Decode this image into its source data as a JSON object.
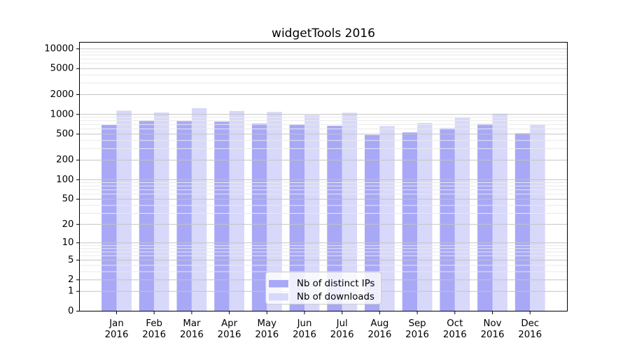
{
  "chart_data": {
    "type": "bar",
    "title": "widgetTools 2016",
    "categories": [
      "Jan",
      "Feb",
      "Mar",
      "Apr",
      "May",
      "Jun",
      "Jul",
      "Aug",
      "Sep",
      "Oct",
      "Nov",
      "Dec"
    ],
    "year": "2016",
    "series": [
      {
        "name": "Nb of distinct IPs",
        "color": "#a8a8f7",
        "values": [
          690,
          800,
          790,
          775,
          725,
          700,
          670,
          485,
          530,
          615,
          715,
          515
        ]
      },
      {
        "name": "Nb of downloads",
        "color": "#d8d8fa",
        "values": [
          1140,
          1070,
          1245,
          1130,
          1090,
          975,
          1060,
          665,
          740,
          900,
          1030,
          705
        ]
      }
    ],
    "xlabel": "",
    "ylabel": "",
    "yscale": "log1p",
    "ylim": [
      0,
      12500
    ],
    "yticks": [
      0,
      1,
      2,
      5,
      10,
      20,
      50,
      100,
      200,
      500,
      1000,
      2000,
      5000,
      10000
    ],
    "grid": "horizontal major and minor gridlines, drawn above bars",
    "legend_position": "lower center"
  },
  "colors": {
    "background": "#ffffff",
    "bar_dark": "#a8a8f7",
    "bar_light": "#d8d8fa",
    "grid_major": "#c3c3c3",
    "grid_minor": "#e9e9e9",
    "axis": "#000000",
    "legend_border": "#cccccc",
    "legend_background": "rgba(255,255,255,0.8)"
  }
}
